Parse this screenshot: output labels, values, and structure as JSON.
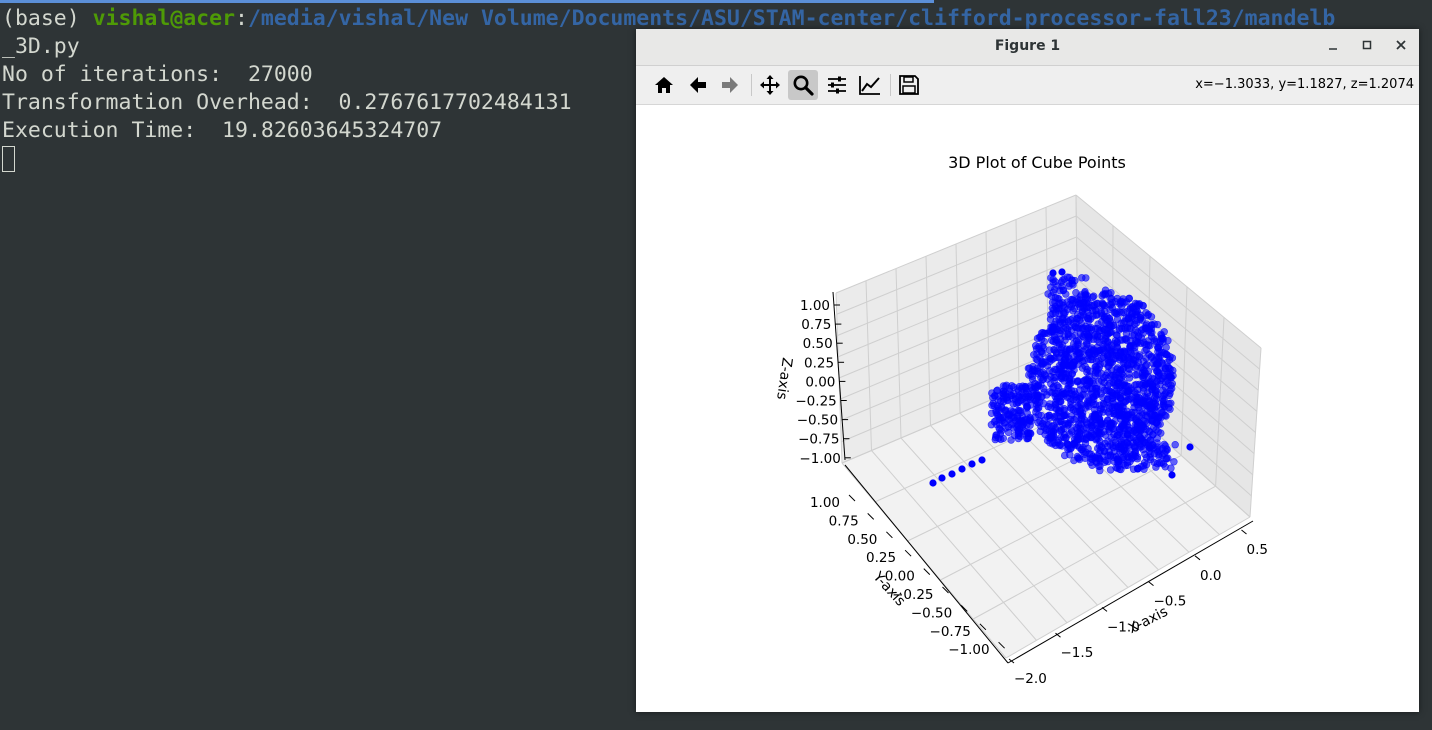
{
  "terminal": {
    "prompt_env": "(base)",
    "prompt_user": "vishal@acer",
    "prompt_colon": ":",
    "prompt_path": "/media/vishal/New Volume/Documents/ASU/STAM-center/clifford-processor-fall23/mandelb",
    "line2": "_3D.py",
    "line3": "No of iterations:  27000",
    "line4": "Transformation Overhead:  0.2767617702484131",
    "line5": "Execution Time:  19.82603645324707"
  },
  "window": {
    "title": "Figure 1",
    "minimize_icon": "minimize-icon",
    "maximize_icon": "maximize-icon",
    "close_icon": "close-icon"
  },
  "toolbar": {
    "buttons": [
      "home-icon",
      "back-arrow-icon",
      "forward-arrow-icon",
      "pan-icon",
      "zoom-icon",
      "configure-subplots-icon",
      "edit-axes-icon",
      "save-icon"
    ],
    "active": "zoom-icon",
    "coords": "x=−1.3033, y=1.1827, z=1.2074"
  },
  "chart_data": {
    "type": "scatter",
    "title": "3D Plot of Cube Points",
    "xlabel": "X-axis",
    "ylabel": "Y-axis",
    "zlabel": "Z-axis",
    "x_ticks": [
      "−2.0",
      "−1.5",
      "−1.0",
      "−0.5",
      "0.0",
      "0.5"
    ],
    "y_ticks": [
      "−1.00",
      "−0.75",
      "−0.50",
      "−0.25",
      "0.00",
      "0.25",
      "0.50",
      "0.75",
      "1.00"
    ],
    "z_ticks": [
      "−1.00",
      "−0.75",
      "−0.50",
      "−0.25",
      "0.00",
      "0.25",
      "0.50",
      "0.75",
      "1.00"
    ],
    "xlim": [
      -2.0,
      0.5
    ],
    "ylim": [
      -1.0,
      1.0
    ],
    "zlim": [
      -1.0,
      1.0
    ],
    "grid": true,
    "marker_color": "#0000ff",
    "points_description_count": 27000
  }
}
